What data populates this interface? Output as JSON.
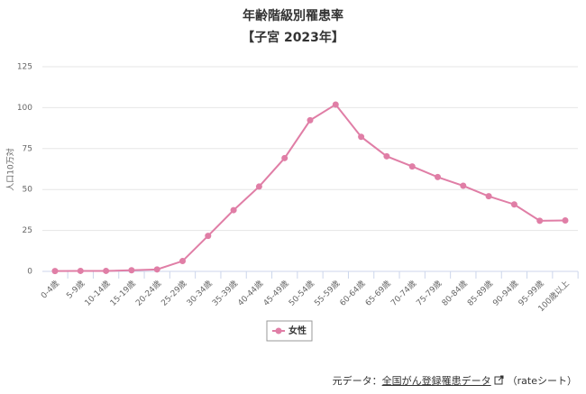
{
  "chart_data": {
    "type": "line",
    "title": "年齢階級別罹患率",
    "subtitle": "【子宮 2023年】",
    "y_label": "人口10万対",
    "categories": [
      "0-4歳",
      "5-9歳",
      "10-14歳",
      "15-19歳",
      "20-24歳",
      "25-29歳",
      "30-34歳",
      "35-39歳",
      "40-44歳",
      "45-49歳",
      "50-54歳",
      "55-59歳",
      "60-64歳",
      "65-69歳",
      "70-74歳",
      "75-79歳",
      "80-84歳",
      "85-89歳",
      "90-94歳",
      "95-99歳",
      "100歳以上"
    ],
    "series": [
      {
        "name": "女性",
        "color": "#e07ea6",
        "values": [
          0.2,
          0.3,
          0.3,
          0.7,
          1.2,
          6.3,
          21.7,
          37.4,
          51.8,
          69.2,
          92.3,
          101.9,
          82.2,
          70.3,
          64.1,
          57.6,
          52.3,
          45.9,
          40.9,
          30.9,
          31.1
        ]
      }
    ],
    "ylim": [
      0,
      125
    ],
    "yticks": [
      0,
      25,
      50,
      75,
      100,
      125
    ],
    "grid": true,
    "legend": "bottom"
  },
  "source": {
    "prefix": "元データ：",
    "link": "全国がん登録罹患データ",
    "suffix": "（rateシート）"
  }
}
